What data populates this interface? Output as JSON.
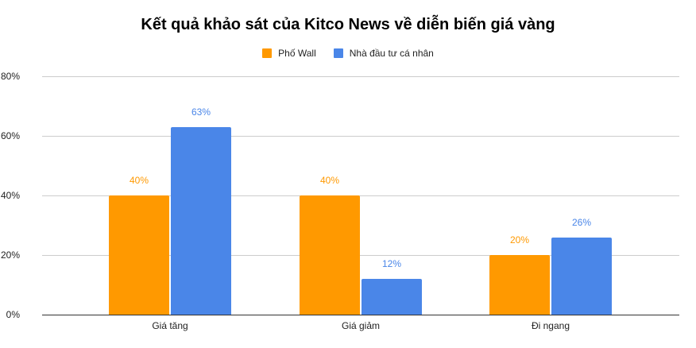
{
  "chart_data": {
    "type": "bar",
    "title": "Kết quả khảo sát của Kitco News về diễn biến giá vàng",
    "categories": [
      "Giá tăng",
      "Giá giảm",
      "Đi ngang"
    ],
    "series": [
      {
        "name": "Phố Wall",
        "color": "#ff9900",
        "values": [
          40,
          40,
          20
        ],
        "labels": [
          "40%",
          "40%",
          "20%"
        ]
      },
      {
        "name": "Nhà đầu tư cá nhân",
        "color": "#4a86e8",
        "values": [
          63,
          12,
          26
        ],
        "labels": [
          "63%",
          "12%",
          "26%"
        ]
      }
    ],
    "xlabel": "",
    "ylabel": "",
    "ylim": [
      0,
      80
    ],
    "yticks": [
      "0%",
      "20%",
      "40%",
      "60%",
      "80%"
    ],
    "grid": true,
    "legend_position": "top"
  }
}
